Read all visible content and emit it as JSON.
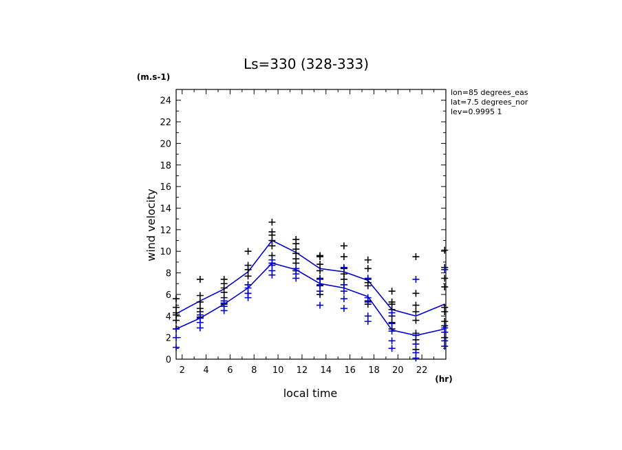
{
  "chart_data": {
    "type": "line",
    "title": "Ls=330 (328-333)",
    "xlabel": "local time",
    "ylabel": "wind velocity",
    "x_unit": "(hr)",
    "y_unit": "(m.s-1)",
    "xlim": [
      1.5,
      24
    ],
    "ylim": [
      0,
      25
    ],
    "x_ticks": [
      2,
      4,
      6,
      8,
      10,
      12,
      14,
      16,
      18,
      20,
      22
    ],
    "y_ticks": [
      0,
      2,
      4,
      6,
      8,
      10,
      12,
      14,
      16,
      18,
      20,
      22,
      24
    ],
    "grid": false,
    "annotations": [
      "lon=85 degrees_eas",
      "lat=7.5 degrees_nor",
      "lev=0.9995 1"
    ],
    "series": [
      {
        "color": "#0000cc",
        "x": [
          1.5,
          3.5,
          5.5,
          7.5,
          9.5,
          11.5,
          13.5,
          15.5,
          17.5,
          19.5,
          21.5,
          23.9
        ],
        "values": [
          4.2,
          5.4,
          6.5,
          8.1,
          11.0,
          9.9,
          8.4,
          8.1,
          7.3,
          4.6,
          4.0,
          5.1
        ]
      },
      {
        "color": "#0000cc",
        "x": [
          1.5,
          3.5,
          5.5,
          7.5,
          9.5,
          11.5,
          13.5,
          15.5,
          17.5,
          19.5,
          21.5,
          23.9
        ],
        "values": [
          2.8,
          3.8,
          5.1,
          6.6,
          8.9,
          8.3,
          7.0,
          6.6,
          5.8,
          2.7,
          2.2,
          2.8
        ]
      }
    ],
    "scatter": [
      {
        "color": "#000000",
        "points": [
          [
            1.5,
            2.8
          ],
          [
            1.5,
            3.6
          ],
          [
            1.5,
            4.1
          ],
          [
            1.5,
            4.3
          ],
          [
            1.5,
            4.8
          ],
          [
            1.5,
            5.6
          ],
          [
            3.5,
            3.9
          ],
          [
            3.5,
            4.4
          ],
          [
            3.5,
            4.7
          ],
          [
            3.5,
            5.3
          ],
          [
            3.5,
            5.9
          ],
          [
            3.5,
            7.4
          ],
          [
            5.5,
            5.1
          ],
          [
            5.5,
            5.7
          ],
          [
            5.5,
            6.2
          ],
          [
            5.5,
            6.6
          ],
          [
            5.5,
            7.0
          ],
          [
            5.5,
            7.4
          ],
          [
            7.5,
            6.1
          ],
          [
            7.5,
            6.9
          ],
          [
            7.5,
            7.7
          ],
          [
            7.5,
            8.3
          ],
          [
            7.5,
            8.7
          ],
          [
            7.5,
            10.0
          ],
          [
            9.5,
            8.9
          ],
          [
            9.5,
            9.6
          ],
          [
            9.5,
            10.5
          ],
          [
            9.5,
            11.0
          ],
          [
            9.5,
            11.5
          ],
          [
            9.5,
            11.8
          ],
          [
            9.5,
            12.7
          ],
          [
            11.5,
            8.2
          ],
          [
            11.5,
            8.9
          ],
          [
            11.5,
            9.3
          ],
          [
            11.5,
            9.8
          ],
          [
            11.5,
            10.2
          ],
          [
            11.5,
            10.7
          ],
          [
            11.5,
            11.1
          ],
          [
            13.5,
            6.0
          ],
          [
            13.5,
            6.8
          ],
          [
            13.5,
            7.5
          ],
          [
            13.5,
            8.2
          ],
          [
            13.5,
            8.8
          ],
          [
            13.5,
            9.5
          ],
          [
            13.5,
            9.6
          ],
          [
            15.5,
            6.9
          ],
          [
            15.5,
            7.4
          ],
          [
            15.5,
            7.9
          ],
          [
            15.5,
            8.4
          ],
          [
            15.5,
            9.5
          ],
          [
            15.5,
            10.5
          ],
          [
            17.5,
            5.1
          ],
          [
            17.5,
            5.4
          ],
          [
            17.5,
            6.8
          ],
          [
            17.5,
            7.1
          ],
          [
            17.5,
            7.4
          ],
          [
            17.5,
            8.4
          ],
          [
            17.5,
            9.2
          ],
          [
            19.5,
            2.8
          ],
          [
            19.5,
            3.4
          ],
          [
            19.5,
            4.0
          ],
          [
            19.5,
            4.6
          ],
          [
            19.5,
            5.1
          ],
          [
            19.5,
            5.3
          ],
          [
            19.5,
            6.3
          ],
          [
            21.5,
            0.9
          ],
          [
            21.5,
            1.8
          ],
          [
            21.5,
            2.4
          ],
          [
            21.5,
            3.6
          ],
          [
            21.5,
            4.4
          ],
          [
            21.5,
            5.0
          ],
          [
            21.5,
            6.1
          ],
          [
            21.5,
            9.5
          ],
          [
            23.9,
            2.0
          ],
          [
            23.9,
            3.1
          ],
          [
            23.9,
            3.5
          ],
          [
            23.9,
            4.4
          ],
          [
            23.9,
            4.8
          ],
          [
            23.9,
            6.7
          ],
          [
            23.9,
            7.5
          ],
          [
            23.9,
            8.5
          ],
          [
            23.9,
            10.1
          ]
        ]
      },
      {
        "color": "#0000cc",
        "points": [
          [
            1.5,
            1.1
          ],
          [
            1.5,
            2.0
          ],
          [
            1.5,
            2.8
          ],
          [
            3.5,
            2.9
          ],
          [
            3.5,
            3.4
          ],
          [
            3.5,
            3.8
          ],
          [
            3.5,
            4.1
          ],
          [
            5.5,
            4.5
          ],
          [
            5.5,
            4.9
          ],
          [
            5.5,
            5.2
          ],
          [
            5.5,
            5.4
          ],
          [
            7.5,
            5.7
          ],
          [
            7.5,
            6.1
          ],
          [
            7.5,
            6.6
          ],
          [
            7.5,
            6.9
          ],
          [
            9.5,
            7.8
          ],
          [
            9.5,
            8.2
          ],
          [
            9.5,
            8.7
          ],
          [
            9.5,
            8.9
          ],
          [
            9.5,
            9.2
          ],
          [
            11.5,
            7.5
          ],
          [
            11.5,
            7.9
          ],
          [
            11.5,
            8.2
          ],
          [
            11.5,
            8.4
          ],
          [
            13.5,
            5.0
          ],
          [
            13.5,
            6.3
          ],
          [
            13.5,
            6.9
          ],
          [
            13.5,
            7.4
          ],
          [
            15.5,
            4.7
          ],
          [
            15.5,
            5.6
          ],
          [
            15.5,
            6.3
          ],
          [
            15.5,
            6.9
          ],
          [
            15.5,
            8.5
          ],
          [
            17.5,
            3.5
          ],
          [
            17.5,
            4.0
          ],
          [
            17.5,
            5.3
          ],
          [
            17.5,
            5.7
          ],
          [
            17.5,
            7.5
          ],
          [
            19.5,
            1.0
          ],
          [
            19.5,
            1.7
          ],
          [
            19.5,
            2.6
          ],
          [
            19.5,
            3.3
          ],
          [
            19.5,
            4.3
          ],
          [
            21.5,
            0.1
          ],
          [
            21.5,
            0.6
          ],
          [
            21.5,
            1.4
          ],
          [
            21.5,
            2.2
          ],
          [
            21.5,
            7.4
          ],
          [
            23.9,
            1.2
          ],
          [
            23.9,
            1.7
          ],
          [
            23.9,
            2.5
          ],
          [
            23.9,
            2.9
          ],
          [
            23.9,
            8.3
          ]
        ]
      }
    ]
  }
}
